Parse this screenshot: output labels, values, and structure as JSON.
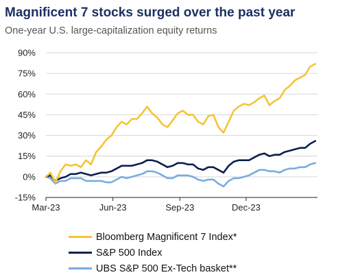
{
  "title": "Magnificent 7 stocks surged over the past year",
  "subtitle": "One-year U.S. large-capitalization equity returns",
  "colors": {
    "title": "#1c2f63",
    "grid": "#d6d6d6"
  },
  "chart_data": {
    "type": "line",
    "y_ticks": [
      "90%",
      "75%",
      "60%",
      "45%",
      "30%",
      "15%",
      "0%",
      "-15%"
    ],
    "y_tick_values": [
      90,
      75,
      60,
      45,
      30,
      15,
      0,
      -15
    ],
    "x_ticks": [
      "Mar-23",
      "Jun-23",
      "Sep-23",
      "Dec-23"
    ],
    "x_tick_values": [
      "2023-03-01",
      "2023-06-01",
      "2023-09-01",
      "2023-12-01"
    ],
    "xlim": [
      "2023-03-01",
      "2024-03-08"
    ],
    "ylim": [
      -15,
      90
    ],
    "grid": "horizontal",
    "legend_position": "bottom",
    "series": [
      {
        "name": "Bloomberg Magnificent 7 Index*",
        "color": "#f5c431",
        "points": [
          [
            "2023-03-01",
            0
          ],
          [
            "2023-03-07",
            3
          ],
          [
            "2023-03-14",
            -4
          ],
          [
            "2023-03-21",
            4
          ],
          [
            "2023-03-28",
            9
          ],
          [
            "2023-04-04",
            8
          ],
          [
            "2023-04-11",
            9
          ],
          [
            "2023-04-18",
            7
          ],
          [
            "2023-04-25",
            12
          ],
          [
            "2023-05-02",
            9
          ],
          [
            "2023-05-09",
            18
          ],
          [
            "2023-05-16",
            22
          ],
          [
            "2023-05-23",
            27
          ],
          [
            "2023-05-30",
            30
          ],
          [
            "2023-06-06",
            36
          ],
          [
            "2023-06-13",
            40
          ],
          [
            "2023-06-20",
            38
          ],
          [
            "2023-06-27",
            42
          ],
          [
            "2023-07-04",
            42
          ],
          [
            "2023-07-11",
            46
          ],
          [
            "2023-07-18",
            51
          ],
          [
            "2023-07-25",
            46
          ],
          [
            "2023-08-01",
            43
          ],
          [
            "2023-08-08",
            38
          ],
          [
            "2023-08-15",
            36
          ],
          [
            "2023-08-22",
            41
          ],
          [
            "2023-08-29",
            46
          ],
          [
            "2023-09-05",
            48
          ],
          [
            "2023-09-12",
            45
          ],
          [
            "2023-09-19",
            45
          ],
          [
            "2023-09-26",
            40
          ],
          [
            "2023-10-03",
            38
          ],
          [
            "2023-10-10",
            44
          ],
          [
            "2023-10-17",
            45
          ],
          [
            "2023-10-24",
            36
          ],
          [
            "2023-10-31",
            32
          ],
          [
            "2023-11-07",
            40
          ],
          [
            "2023-11-14",
            48
          ],
          [
            "2023-11-21",
            51
          ],
          [
            "2023-11-28",
            53
          ],
          [
            "2023-12-05",
            52
          ],
          [
            "2023-12-12",
            54
          ],
          [
            "2023-12-19",
            57
          ],
          [
            "2023-12-26",
            59
          ],
          [
            "2024-01-02",
            52
          ],
          [
            "2024-01-09",
            55
          ],
          [
            "2024-01-16",
            57
          ],
          [
            "2024-01-23",
            63
          ],
          [
            "2024-01-30",
            66
          ],
          [
            "2024-02-06",
            70
          ],
          [
            "2024-02-13",
            72
          ],
          [
            "2024-02-20",
            74
          ],
          [
            "2024-02-27",
            80
          ],
          [
            "2024-03-05",
            82
          ]
        ]
      },
      {
        "name": "S&P 500 Index",
        "color": "#0a1f4f",
        "points": [
          [
            "2023-03-01",
            0
          ],
          [
            "2023-03-07",
            1
          ],
          [
            "2023-03-14",
            -3
          ],
          [
            "2023-03-21",
            -1
          ],
          [
            "2023-03-28",
            0
          ],
          [
            "2023-04-04",
            2
          ],
          [
            "2023-04-11",
            2
          ],
          [
            "2023-04-18",
            3
          ],
          [
            "2023-04-25",
            2
          ],
          [
            "2023-05-02",
            1
          ],
          [
            "2023-05-09",
            2
          ],
          [
            "2023-05-16",
            3
          ],
          [
            "2023-05-23",
            3
          ],
          [
            "2023-05-30",
            4
          ],
          [
            "2023-06-06",
            6
          ],
          [
            "2023-06-13",
            8
          ],
          [
            "2023-06-20",
            8
          ],
          [
            "2023-06-27",
            8
          ],
          [
            "2023-07-04",
            9
          ],
          [
            "2023-07-11",
            10
          ],
          [
            "2023-07-18",
            12
          ],
          [
            "2023-07-25",
            12
          ],
          [
            "2023-08-01",
            11
          ],
          [
            "2023-08-08",
            9
          ],
          [
            "2023-08-15",
            7
          ],
          [
            "2023-08-22",
            8
          ],
          [
            "2023-08-29",
            10
          ],
          [
            "2023-09-05",
            10
          ],
          [
            "2023-09-12",
            9
          ],
          [
            "2023-09-19",
            9
          ],
          [
            "2023-09-26",
            6
          ],
          [
            "2023-10-03",
            5
          ],
          [
            "2023-10-10",
            7
          ],
          [
            "2023-10-17",
            7
          ],
          [
            "2023-10-24",
            5
          ],
          [
            "2023-10-31",
            3
          ],
          [
            "2023-11-07",
            8
          ],
          [
            "2023-11-14",
            11
          ],
          [
            "2023-11-21",
            12
          ],
          [
            "2023-11-28",
            12
          ],
          [
            "2023-12-05",
            12
          ],
          [
            "2023-12-12",
            14
          ],
          [
            "2023-12-19",
            16
          ],
          [
            "2023-12-26",
            17
          ],
          [
            "2024-01-02",
            15
          ],
          [
            "2024-01-09",
            16
          ],
          [
            "2024-01-16",
            16
          ],
          [
            "2024-01-23",
            18
          ],
          [
            "2024-01-30",
            19
          ],
          [
            "2024-02-06",
            20
          ],
          [
            "2024-02-13",
            21
          ],
          [
            "2024-02-20",
            21
          ],
          [
            "2024-02-27",
            24
          ],
          [
            "2024-03-05",
            26
          ]
        ]
      },
      {
        "name": "UBS S&P 500 Ex-Tech basket**",
        "color": "#78acdf",
        "points": [
          [
            "2023-03-01",
            0
          ],
          [
            "2023-03-07",
            -1
          ],
          [
            "2023-03-14",
            -5
          ],
          [
            "2023-03-21",
            -3
          ],
          [
            "2023-03-28",
            -3
          ],
          [
            "2023-04-04",
            -1
          ],
          [
            "2023-04-11",
            -1
          ],
          [
            "2023-04-18",
            -1
          ],
          [
            "2023-04-25",
            -3
          ],
          [
            "2023-05-02",
            -3
          ],
          [
            "2023-05-09",
            -3
          ],
          [
            "2023-05-16",
            -3
          ],
          [
            "2023-05-23",
            -4
          ],
          [
            "2023-05-30",
            -4
          ],
          [
            "2023-06-06",
            -2
          ],
          [
            "2023-06-13",
            0
          ],
          [
            "2023-06-20",
            -1
          ],
          [
            "2023-06-27",
            0
          ],
          [
            "2023-07-04",
            1
          ],
          [
            "2023-07-11",
            2
          ],
          [
            "2023-07-18",
            4
          ],
          [
            "2023-07-25",
            4
          ],
          [
            "2023-08-01",
            3
          ],
          [
            "2023-08-08",
            1
          ],
          [
            "2023-08-15",
            -1
          ],
          [
            "2023-08-22",
            -1
          ],
          [
            "2023-08-29",
            1
          ],
          [
            "2023-09-05",
            1
          ],
          [
            "2023-09-12",
            1
          ],
          [
            "2023-09-19",
            0
          ],
          [
            "2023-09-26",
            -2
          ],
          [
            "2023-10-03",
            -3
          ],
          [
            "2023-10-10",
            -2
          ],
          [
            "2023-10-17",
            -2
          ],
          [
            "2023-10-24",
            -5
          ],
          [
            "2023-10-31",
            -7
          ],
          [
            "2023-11-07",
            -3
          ],
          [
            "2023-11-14",
            -1
          ],
          [
            "2023-11-21",
            -1
          ],
          [
            "2023-11-28",
            0
          ],
          [
            "2023-12-05",
            1
          ],
          [
            "2023-12-12",
            3
          ],
          [
            "2023-12-19",
            5
          ],
          [
            "2023-12-26",
            5
          ],
          [
            "2024-01-02",
            4
          ],
          [
            "2024-01-09",
            4
          ],
          [
            "2024-01-16",
            3
          ],
          [
            "2024-01-23",
            5
          ],
          [
            "2024-01-30",
            6
          ],
          [
            "2024-02-06",
            6
          ],
          [
            "2024-02-13",
            7
          ],
          [
            "2024-02-20",
            7
          ],
          [
            "2024-02-27",
            9
          ],
          [
            "2024-03-05",
            10
          ]
        ]
      }
    ]
  }
}
